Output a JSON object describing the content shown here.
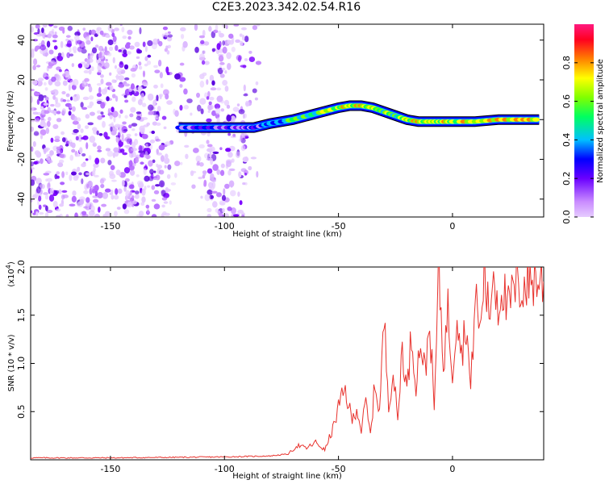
{
  "title": "C2E3.2023.342.02.54.R16",
  "colors": {
    "spectrogram_speckle": "#7a00ff",
    "snr_line": "#e8322d",
    "colorbar": [
      "#c98bff",
      "#6a00ff",
      "#0000ff",
      "#00c0ff",
      "#00ff60",
      "#80ff00",
      "#ffff00",
      "#ff8000",
      "#ff0020",
      "#ff1a80"
    ]
  },
  "chart_data": [
    {
      "type": "heatmap",
      "xlabel": "Height of straight line (km)",
      "ylabel": "Frequency (Hz)",
      "xlim": [
        -185,
        40
      ],
      "ylim": [
        -49,
        48
      ],
      "xticks": [
        -150,
        -100,
        -50,
        0
      ],
      "yticks": [
        40,
        20,
        0,
        -20,
        -40
      ],
      "colorbar": {
        "label": "Normalized spectral amplitude",
        "range": [
          0,
          1
        ],
        "ticks": [
          "0.0",
          "0.2",
          "0.4",
          "0.6",
          "0.8"
        ]
      },
      "ridge": {
        "x": [
          -120,
          -110,
          -100,
          -92,
          -87,
          -80,
          -70,
          -60,
          -50,
          -45,
          -40,
          -35,
          -30,
          -25,
          -20,
          -15,
          -10,
          -5,
          0,
          10,
          20,
          30,
          38
        ],
        "y": [
          -4,
          -4,
          -4,
          -4,
          -4,
          -2,
          0,
          3,
          6,
          7,
          7,
          6,
          4,
          2,
          0,
          -1,
          -1,
          -1,
          -1,
          -1,
          0,
          0,
          0
        ],
        "amplitude": [
          0.35,
          0.4,
          0.35,
          0.3,
          0.4,
          0.5,
          0.65,
          0.75,
          0.85,
          0.8,
          0.85,
          0.8,
          0.75,
          0.7,
          0.8,
          0.85,
          0.8,
          0.85,
          0.85,
          0.85,
          0.9,
          0.9,
          0.9
        ]
      }
    },
    {
      "type": "line",
      "xlabel": "Height of straight line (km)",
      "ylabel": "SNR (10 * v/v)",
      "y_multiplier": "(x10",
      "y_multiplier_exp": "4",
      "y_multiplier_close": ")",
      "xlim": [
        -185,
        40
      ],
      "ylim": [
        0,
        2.0
      ],
      "xticks": [
        -150,
        -100,
        -50,
        0
      ],
      "yticks": [
        "0.5",
        "1.0",
        "1.5",
        "2.0"
      ],
      "x": [
        -185,
        -150,
        -100,
        -80,
        -72,
        -68,
        -64,
        -60,
        -56,
        -52,
        -50,
        -47,
        -44,
        -42,
        -40,
        -38,
        -36,
        -34,
        -32,
        -30,
        -28,
        -26,
        -24,
        -22,
        -20,
        -18,
        -16,
        -14,
        -12,
        -10,
        -8,
        -6,
        -4,
        -2,
        0,
        2,
        4,
        6,
        8,
        10,
        12,
        14,
        16,
        18,
        20,
        22,
        24,
        26,
        28,
        30,
        32,
        35,
        40
      ],
      "y": [
        0.02,
        0.02,
        0.03,
        0.04,
        0.06,
        0.15,
        0.12,
        0.18,
        0.1,
        0.35,
        0.55,
        0.72,
        0.4,
        0.55,
        0.3,
        0.6,
        0.25,
        0.8,
        0.5,
        1.45,
        0.6,
        0.9,
        0.4,
        1.2,
        0.7,
        1.3,
        0.8,
        1.25,
        0.9,
        1.45,
        0.5,
        2.0,
        1.0,
        1.55,
        0.9,
        1.6,
        1.1,
        1.45,
        0.7,
        1.75,
        1.3,
        2.0,
        1.45,
        2.0,
        1.6,
        1.85,
        1.5,
        1.7,
        1.75,
        1.8,
        1.82,
        1.88,
        1.85
      ]
    }
  ]
}
